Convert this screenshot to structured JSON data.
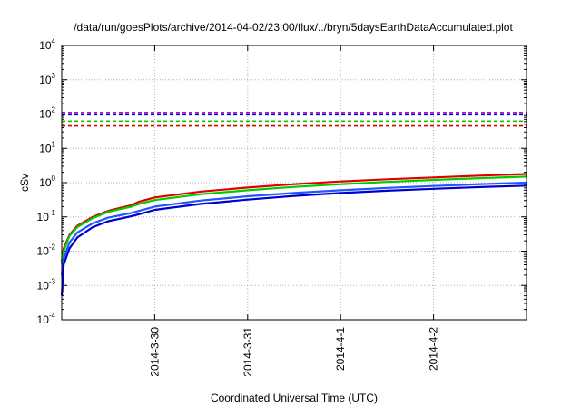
{
  "chart_data": {
    "type": "line",
    "title": "/data/run/goesPlots/archive/2014-04-02/23:00/flux/../bryn/5daysEarthDataAccumulated.plot",
    "xlabel": "Coordinated Universal Time (UTC)",
    "ylabel": "cSv",
    "y_scale": "log",
    "ylim": [
      0.0001,
      10000
    ],
    "y_ticks": [
      {
        "base": "10",
        "exp": "-4",
        "value": 0.0001
      },
      {
        "base": "10",
        "exp": "-3",
        "value": 0.001
      },
      {
        "base": "10",
        "exp": "-2",
        "value": 0.01
      },
      {
        "base": "10",
        "exp": "-1",
        "value": 0.1
      },
      {
        "base": "10",
        "exp": "0",
        "value": 1
      },
      {
        "base": "10",
        "exp": "1",
        "value": 10
      },
      {
        "base": "10",
        "exp": "2",
        "value": 100
      },
      {
        "base": "10",
        "exp": "3",
        "value": 1000
      },
      {
        "base": "10",
        "exp": "4",
        "value": 10000
      }
    ],
    "xlim": [
      "2014-03-29 00:00",
      "2014-04-03 00:00"
    ],
    "x_ticks": [
      {
        "label": "2014-3-30",
        "value": "2014-03-30 00:00"
      },
      {
        "label": "2014-3-31",
        "value": "2014-03-31 00:00"
      },
      {
        "label": "2014-4-1",
        "value": "2014-04-01 00:00"
      },
      {
        "label": "2014-4-2",
        "value": "2014-04-02 00:00"
      }
    ],
    "grid": true,
    "series": [
      {
        "color": "#dd0000",
        "x": [
          "2014-03-29 00:00",
          "2014-03-29 00:30",
          "2014-03-29 02:00",
          "2014-03-29 04:00",
          "2014-03-29 08:00",
          "2014-03-29 12:00",
          "2014-03-29 18:00",
          "2014-03-29 19:00",
          "2014-03-29 20:00",
          "2014-03-30 00:00",
          "2014-03-30 12:00",
          "2014-03-31 00:00",
          "2014-03-31 12:00",
          "2014-04-01 00:00",
          "2014-04-01 12:00",
          "2014-04-02 00:00",
          "2014-04-02 12:00",
          "2014-04-03 00:00"
        ],
        "y": [
          0.005,
          0.012,
          0.03,
          0.055,
          0.1,
          0.15,
          0.22,
          0.25,
          0.28,
          0.37,
          0.55,
          0.72,
          0.9,
          1.08,
          1.25,
          1.42,
          1.6,
          1.78
        ]
      },
      {
        "color": "#00cc00",
        "x": [
          "2014-03-29 00:00",
          "2014-03-29 00:30",
          "2014-03-29 02:00",
          "2014-03-29 04:00",
          "2014-03-29 08:00",
          "2014-03-29 12:00",
          "2014-03-29 18:00",
          "2014-03-29 19:00",
          "2014-03-29 20:00",
          "2014-03-30 00:00",
          "2014-03-30 12:00",
          "2014-03-31 00:00",
          "2014-03-31 12:00",
          "2014-04-01 00:00",
          "2014-04-01 12:00",
          "2014-04-02 00:00",
          "2014-04-02 12:00",
          "2014-04-03 00:00"
        ],
        "y": [
          0.004,
          0.01,
          0.028,
          0.05,
          0.092,
          0.14,
          0.2,
          0.22,
          0.24,
          0.31,
          0.46,
          0.6,
          0.75,
          0.9,
          1.05,
          1.2,
          1.35,
          1.5
        ]
      },
      {
        "color": "#2255ff",
        "x": [
          "2014-03-29 00:00",
          "2014-03-29 00:30",
          "2014-03-29 02:00",
          "2014-03-29 04:00",
          "2014-03-29 08:00",
          "2014-03-29 12:00",
          "2014-03-29 18:00",
          "2014-03-29 20:00",
          "2014-03-30 00:00",
          "2014-03-30 12:00",
          "2014-03-31 00:00",
          "2014-03-31 12:00",
          "2014-04-01 00:00",
          "2014-04-01 12:00",
          "2014-04-02 00:00",
          "2014-04-02 12:00",
          "2014-04-03 00:00"
        ],
        "y": [
          0.002,
          0.006,
          0.018,
          0.035,
          0.065,
          0.095,
          0.13,
          0.15,
          0.2,
          0.3,
          0.4,
          0.5,
          0.6,
          0.7,
          0.8,
          0.9,
          1.0
        ]
      },
      {
        "color": "#0000cc",
        "x": [
          "2014-03-29 00:00",
          "2014-03-29 00:30",
          "2014-03-29 02:00",
          "2014-03-29 04:00",
          "2014-03-29 08:00",
          "2014-03-29 12:00",
          "2014-03-29 18:00",
          "2014-03-29 20:00",
          "2014-03-30 00:00",
          "2014-03-30 12:00",
          "2014-03-31 00:00",
          "2014-03-31 12:00",
          "2014-04-01 00:00",
          "2014-04-01 12:00",
          "2014-04-02 00:00",
          "2014-04-02 12:00",
          "2014-04-03 00:00"
        ],
        "y": [
          0.0005,
          0.004,
          0.012,
          0.025,
          0.05,
          0.075,
          0.105,
          0.12,
          0.16,
          0.24,
          0.32,
          0.41,
          0.5,
          0.58,
          0.66,
          0.74,
          0.82
        ]
      }
    ],
    "reference_lines": [
      {
        "color": "#8800cc",
        "value": 110,
        "style": "dashed"
      },
      {
        "color": "#0000cc",
        "value": 95,
        "style": "dashed"
      },
      {
        "color": "#00cc00",
        "value": 62,
        "style": "dashed"
      },
      {
        "color": "#dd0000",
        "value": 45,
        "style": "dashed"
      }
    ]
  }
}
